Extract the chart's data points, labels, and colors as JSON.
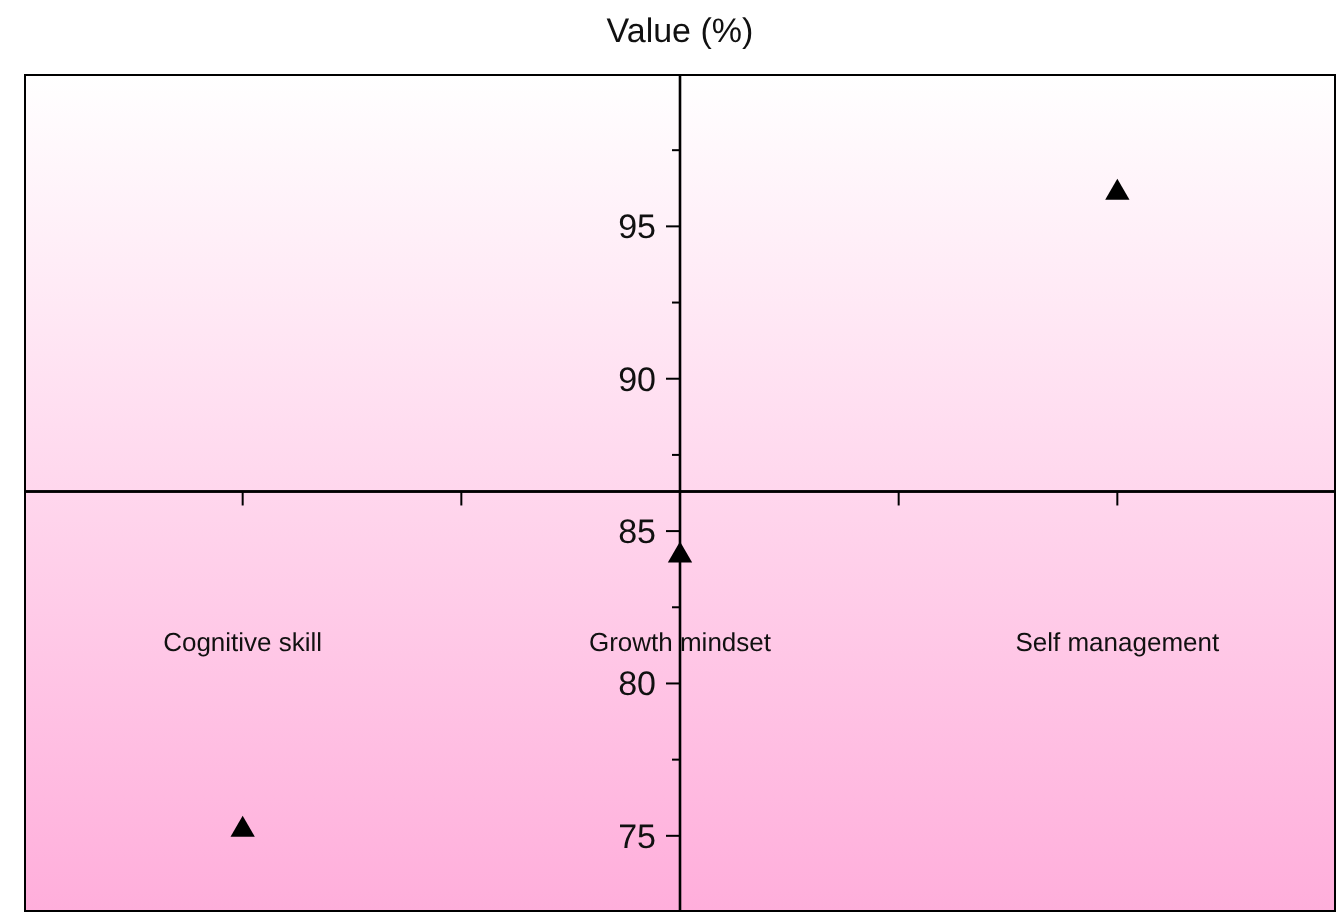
{
  "chart_data": {
    "type": "scatter",
    "ylabel": "Value (%)",
    "categories": [
      "Cognitive skill",
      "Growth mindset",
      "Self management"
    ],
    "series": [
      {
        "color": "#000000",
        "values": [
          75.2,
          84.2,
          96.1
        ]
      }
    ],
    "marker": "triangle",
    "ylim": [
      72.5,
      100
    ],
    "yticks": [
      75,
      80,
      85,
      90,
      95
    ],
    "ref_lines": [
      {
        "axis": "y",
        "value": 86.3,
        "color": "#000000"
      }
    ],
    "grid": false
  }
}
